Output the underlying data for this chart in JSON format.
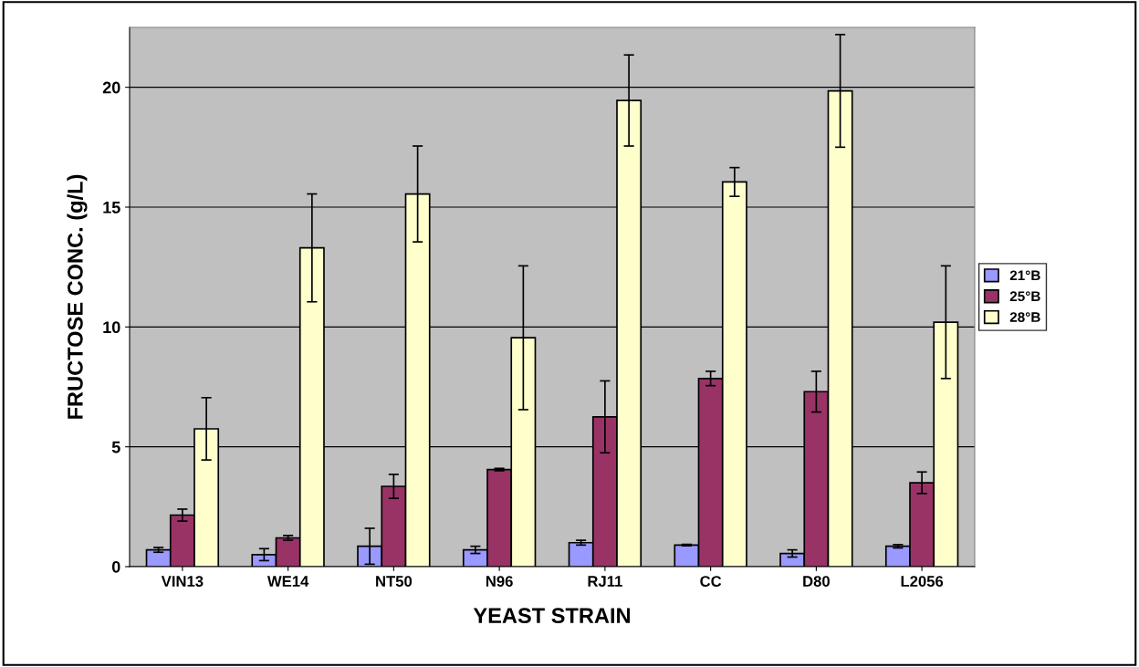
{
  "chart_data": {
    "type": "bar",
    "xlabel": "YEAST STRAIN",
    "ylabel": "FRUCTOSE CONC. (g/L)",
    "categories": [
      "VIN13",
      "WE14",
      "NT50",
      "N96",
      "RJ11",
      "CC",
      "D80",
      "L2056"
    ],
    "series": [
      {
        "name": "21°B",
        "color": "#9999ff",
        "values": [
          0.7,
          0.5,
          0.85,
          0.7,
          1.0,
          0.9,
          0.55,
          0.85
        ],
        "errors": [
          0.1,
          0.25,
          0.75,
          0.15,
          0.1,
          0.03,
          0.15,
          0.07
        ]
      },
      {
        "name": "25°B",
        "color": "#993366",
        "values": [
          2.15,
          1.2,
          3.35,
          4.05,
          6.25,
          7.85,
          7.3,
          3.5
        ],
        "errors": [
          0.25,
          0.1,
          0.5,
          0.05,
          1.5,
          0.3,
          0.85,
          0.45
        ]
      },
      {
        "name": "28°B",
        "color": "#ffffcc",
        "values": [
          5.75,
          13.3,
          15.55,
          9.55,
          19.45,
          16.05,
          19.85,
          10.2
        ],
        "errors": [
          1.3,
          2.25,
          2.0,
          3.0,
          1.9,
          0.6,
          2.35,
          2.35
        ]
      }
    ],
    "ylim": [
      0,
      22.5
    ],
    "yticks": [
      0,
      5,
      10,
      15,
      20
    ],
    "grid": "y",
    "legend": "right"
  }
}
